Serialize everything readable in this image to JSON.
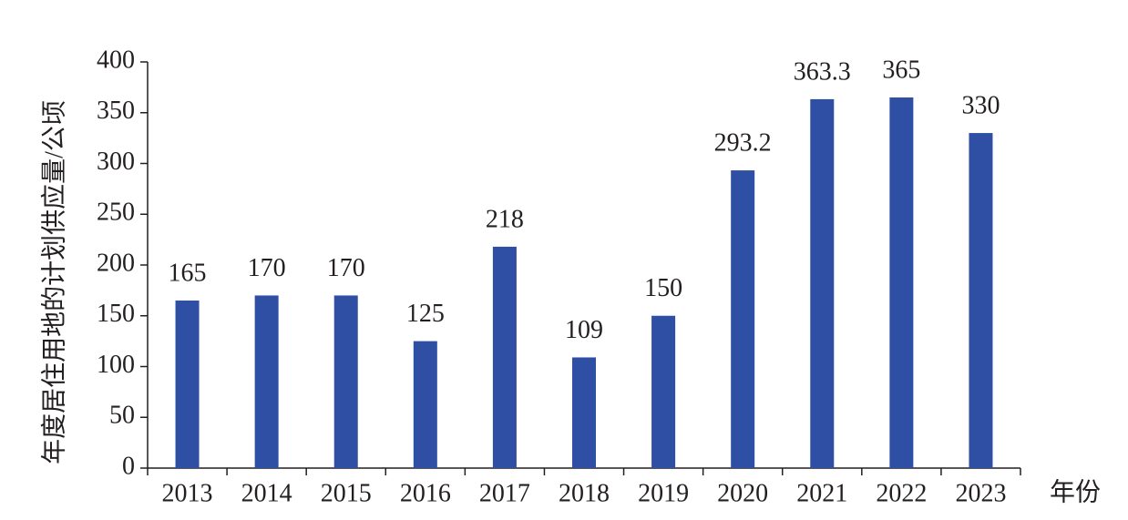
{
  "chart_data": {
    "type": "bar",
    "y_label": "年度居住用地的计划供应量/公顷",
    "x_label": "年份",
    "categories": [
      "2013",
      "2014",
      "2015",
      "2016",
      "2017",
      "2018",
      "2019",
      "2020",
      "2021",
      "2022",
      "2023"
    ],
    "values": [
      165,
      170,
      170,
      125,
      218,
      109,
      150,
      293.2,
      363.3,
      365,
      330
    ],
    "color": "#2e4fa3",
    "ylim": [
      0,
      400
    ],
    "yticks": [
      0,
      50,
      100,
      150,
      200,
      250,
      300,
      350,
      400
    ],
    "grid": false
  }
}
